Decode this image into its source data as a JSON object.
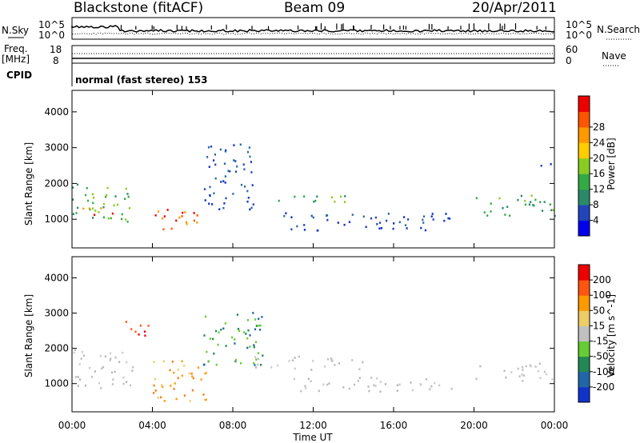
{
  "header": {
    "station": "Blackstone (fitACF)",
    "beam": "Beam 09",
    "date": "20/Apr/2011"
  },
  "top_panels": {
    "nsky_label": "N.Sky",
    "nsky_ticks": [
      "10^5",
      "10^0"
    ],
    "nsearch_label": "N.Search",
    "nsearch_ticks": [
      "10^5",
      "10^0"
    ],
    "freq_label": "Freq.",
    "freq_unit": "[MHz]",
    "freq_ticks": [
      "18",
      "8"
    ],
    "nave_label": "Nave",
    "nave_ticks": [
      "60",
      "0"
    ],
    "cpid_label": "CPID",
    "cpid_text": "normal (fast stereo) 153"
  },
  "chart_data": [
    {
      "type": "heatmap",
      "name": "power",
      "ylabel": "Slant Range [km]",
      "yticks": [
        1000,
        2000,
        3000,
        4000
      ],
      "ylim": [
        200,
        4600
      ],
      "xlim": [
        0,
        24
      ],
      "colorbar": {
        "label": "Power [dB]",
        "ticks": [
          "4",
          "8",
          "12",
          "16",
          "20",
          "24",
          "28"
        ],
        "colors": [
          "#0000ee",
          "#2244bb",
          "#2a8a6a",
          "#33aa44",
          "#88cc22",
          "#ffcc00",
          "#ff9900",
          "#ff5500",
          "#ee0000"
        ]
      },
      "features": [
        {
          "t0": 0.0,
          "t1": 3.0,
          "r0": 900,
          "r1": 2000,
          "level": "medium"
        },
        {
          "t0": 0.0,
          "t1": 2.2,
          "r0": 1150,
          "r1": 1350,
          "level": "high"
        },
        {
          "t0": 4.0,
          "t1": 6.3,
          "r0": 600,
          "r1": 1300,
          "level": "high"
        },
        {
          "t0": 6.5,
          "t1": 9.0,
          "r0": 1300,
          "r1": 3200,
          "level": "low"
        },
        {
          "t0": 9.0,
          "t1": 14.0,
          "r0": 1500,
          "r1": 1700,
          "level": "medium"
        },
        {
          "t0": 10.5,
          "t1": 19.0,
          "r0": 700,
          "r1": 1200,
          "level": "low"
        },
        {
          "t0": 20.0,
          "t1": 24.0,
          "r0": 1100,
          "r1": 1700,
          "level": "medium"
        },
        {
          "t0": 23.0,
          "t1": 24.0,
          "r0": 2400,
          "r1": 2600,
          "level": "low"
        }
      ]
    },
    {
      "type": "heatmap",
      "name": "velocity",
      "ylabel": "Slant Range [km]",
      "xlabel": "Time UT",
      "xticks": [
        "00:00",
        "04:00",
        "08:00",
        "12:00",
        "16:00",
        "20:00",
        "00:00"
      ],
      "yticks": [
        1000,
        2000,
        3000,
        4000
      ],
      "ylim": [
        200,
        4600
      ],
      "xlim": [
        0,
        24
      ],
      "colorbar": {
        "label": "Velocity [m s^-1]",
        "ticks": [
          "200",
          "100",
          "50",
          "15",
          "-15",
          "-50",
          "-100",
          "-200"
        ],
        "colors": [
          "#1133cc",
          "#2266aa",
          "#228855",
          "#66cc33",
          "#c0c0c0",
          "#eecc66",
          "#ff9900",
          "#ff5511",
          "#ee0000"
        ]
      },
      "features": [
        {
          "t0": 0.0,
          "t1": 3.0,
          "r0": 900,
          "r1": 2000,
          "level": "ground"
        },
        {
          "t0": 2.3,
          "t1": 3.8,
          "r0": 2300,
          "r1": 2800,
          "level": "negative-strong"
        },
        {
          "t0": 4.0,
          "t1": 6.8,
          "r0": 500,
          "r1": 1700,
          "level": "negative"
        },
        {
          "t0": 6.5,
          "t1": 9.5,
          "r0": 1500,
          "r1": 3100,
          "level": "positive"
        },
        {
          "t0": 9.0,
          "t1": 14.5,
          "r0": 1400,
          "r1": 1800,
          "level": "ground"
        },
        {
          "t0": 10.5,
          "t1": 19.0,
          "r0": 800,
          "r1": 1200,
          "level": "ground"
        },
        {
          "t0": 20.0,
          "t1": 24.0,
          "r0": 1100,
          "r1": 1600,
          "level": "ground"
        }
      ]
    }
  ]
}
